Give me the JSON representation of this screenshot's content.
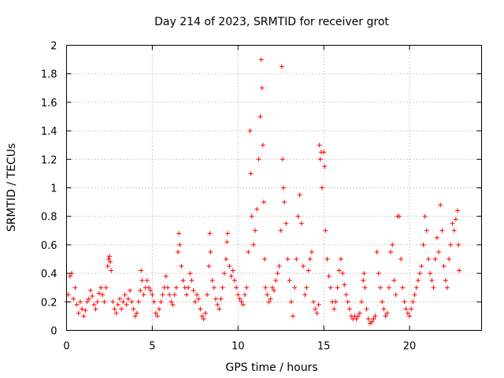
{
  "chart_data": {
    "type": "scatter",
    "title": "Day 214 of 2023, SRMTID for receiver grot",
    "xlabel": "GPS time / hours",
    "ylabel": "SRMTID / TECUs",
    "xlim": [
      0,
      24.2
    ],
    "ylim": [
      0,
      2
    ],
    "xticks": [
      0,
      5,
      10,
      15,
      20
    ],
    "xtick_labels": [
      "0",
      "5",
      "10",
      "15",
      "20"
    ],
    "yticks": [
      0,
      0.2,
      0.4,
      0.6,
      0.8,
      1,
      1.2,
      1.4,
      1.6,
      1.8,
      2
    ],
    "ytick_labels": [
      "0",
      "0.2",
      "0.4",
      "0.6",
      "0.8",
      "1",
      "1.2",
      "1.4",
      "1.6",
      "1.8",
      "2"
    ],
    "grid": true,
    "marker": "plus",
    "color": "#ff0000",
    "series": [
      {
        "name": "SRMTID",
        "points": [
          [
            0.0,
            0.2
          ],
          [
            0.1,
            0.25
          ],
          [
            0.2,
            0.38
          ],
          [
            0.3,
            0.4
          ],
          [
            0.4,
            0.22
          ],
          [
            0.5,
            0.3
          ],
          [
            0.6,
            0.18
          ],
          [
            0.7,
            0.12
          ],
          [
            0.8,
            0.2
          ],
          [
            0.9,
            0.15
          ],
          [
            1.0,
            0.1
          ],
          [
            1.1,
            0.14
          ],
          [
            1.2,
            0.2
          ],
          [
            1.3,
            0.22
          ],
          [
            1.4,
            0.28
          ],
          [
            1.5,
            0.24
          ],
          [
            1.6,
            0.18
          ],
          [
            1.7,
            0.15
          ],
          [
            1.8,
            0.2
          ],
          [
            1.9,
            0.26
          ],
          [
            2.0,
            0.3
          ],
          [
            2.1,
            0.25
          ],
          [
            2.2,
            0.2
          ],
          [
            2.3,
            0.3
          ],
          [
            2.4,
            0.45
          ],
          [
            2.45,
            0.5
          ],
          [
            2.5,
            0.52
          ],
          [
            2.55,
            0.48
          ],
          [
            2.6,
            0.42
          ],
          [
            2.7,
            0.2
          ],
          [
            2.8,
            0.15
          ],
          [
            2.9,
            0.12
          ],
          [
            3.0,
            0.18
          ],
          [
            3.1,
            0.22
          ],
          [
            3.2,
            0.15
          ],
          [
            3.3,
            0.2
          ],
          [
            3.4,
            0.25
          ],
          [
            3.5,
            0.18
          ],
          [
            3.6,
            0.22
          ],
          [
            3.7,
            0.28
          ],
          [
            3.8,
            0.2
          ],
          [
            3.9,
            0.15
          ],
          [
            4.0,
            0.1
          ],
          [
            4.1,
            0.12
          ],
          [
            4.2,
            0.2
          ],
          [
            4.3,
            0.28
          ],
          [
            4.35,
            0.42
          ],
          [
            4.4,
            0.35
          ],
          [
            4.5,
            0.25
          ],
          [
            4.6,
            0.3
          ],
          [
            4.7,
            0.35
          ],
          [
            4.8,
            0.3
          ],
          [
            4.9,
            0.28
          ],
          [
            5.0,
            0.25
          ],
          [
            5.1,
            0.2
          ],
          [
            5.2,
            0.12
          ],
          [
            5.3,
            0.1
          ],
          [
            5.4,
            0.15
          ],
          [
            5.5,
            0.2
          ],
          [
            5.6,
            0.25
          ],
          [
            5.7,
            0.3
          ],
          [
            5.8,
            0.38
          ],
          [
            5.9,
            0.3
          ],
          [
            6.0,
            0.25
          ],
          [
            6.1,
            0.2
          ],
          [
            6.2,
            0.18
          ],
          [
            6.3,
            0.25
          ],
          [
            6.4,
            0.3
          ],
          [
            6.5,
            0.55
          ],
          [
            6.55,
            0.68
          ],
          [
            6.6,
            0.6
          ],
          [
            6.7,
            0.45
          ],
          [
            6.8,
            0.35
          ],
          [
            6.9,
            0.3
          ],
          [
            7.0,
            0.25
          ],
          [
            7.1,
            0.3
          ],
          [
            7.2,
            0.4
          ],
          [
            7.3,
            0.35
          ],
          [
            7.4,
            0.28
          ],
          [
            7.5,
            0.2
          ],
          [
            7.6,
            0.25
          ],
          [
            7.7,
            0.22
          ],
          [
            7.8,
            0.15
          ],
          [
            7.9,
            0.1
          ],
          [
            8.0,
            0.08
          ],
          [
            8.1,
            0.12
          ],
          [
            8.2,
            0.25
          ],
          [
            8.3,
            0.45
          ],
          [
            8.35,
            0.68
          ],
          [
            8.4,
            0.55
          ],
          [
            8.5,
            0.35
          ],
          [
            8.6,
            0.3
          ],
          [
            8.7,
            0.22
          ],
          [
            8.8,
            0.18
          ],
          [
            8.9,
            0.15
          ],
          [
            9.0,
            0.22
          ],
          [
            9.1,
            0.3
          ],
          [
            9.2,
            0.4
          ],
          [
            9.3,
            0.5
          ],
          [
            9.35,
            0.62
          ],
          [
            9.4,
            0.68
          ],
          [
            9.5,
            0.45
          ],
          [
            9.6,
            0.38
          ],
          [
            9.7,
            0.42
          ],
          [
            9.8,
            0.35
          ],
          [
            9.9,
            0.3
          ],
          [
            10.0,
            0.25
          ],
          [
            10.1,
            0.22
          ],
          [
            10.2,
            0.2
          ],
          [
            10.3,
            0.18
          ],
          [
            10.4,
            0.25
          ],
          [
            10.5,
            0.3
          ],
          [
            10.6,
            0.55
          ],
          [
            10.7,
            1.4
          ],
          [
            10.75,
            1.1
          ],
          [
            10.8,
            0.8
          ],
          [
            10.9,
            0.6
          ],
          [
            11.0,
            0.7
          ],
          [
            11.1,
            0.85
          ],
          [
            11.2,
            1.2
          ],
          [
            11.3,
            1.5
          ],
          [
            11.35,
            1.9
          ],
          [
            11.4,
            1.7
          ],
          [
            11.45,
            1.3
          ],
          [
            11.5,
            0.9
          ],
          [
            11.55,
            0.5
          ],
          [
            11.6,
            0.3
          ],
          [
            11.7,
            0.25
          ],
          [
            11.8,
            0.2
          ],
          [
            11.9,
            0.22
          ],
          [
            12.0,
            0.3
          ],
          [
            12.1,
            0.28
          ],
          [
            12.2,
            0.35
          ],
          [
            12.3,
            0.4
          ],
          [
            12.4,
            0.45
          ],
          [
            12.5,
            0.7
          ],
          [
            12.55,
            1.85
          ],
          [
            12.6,
            1.2
          ],
          [
            12.65,
            1.0
          ],
          [
            12.7,
            0.9
          ],
          [
            12.8,
            0.75
          ],
          [
            12.9,
            0.5
          ],
          [
            13.0,
            0.35
          ],
          [
            13.1,
            0.2
          ],
          [
            13.2,
            0.1
          ],
          [
            13.3,
            0.3
          ],
          [
            13.4,
            0.5
          ],
          [
            13.5,
            0.8
          ],
          [
            13.6,
            0.95
          ],
          [
            13.7,
            0.75
          ],
          [
            13.8,
            0.45
          ],
          [
            13.9,
            0.25
          ],
          [
            14.0,
            0.3
          ],
          [
            14.1,
            0.42
          ],
          [
            14.2,
            0.5
          ],
          [
            14.3,
            0.55
          ],
          [
            14.4,
            0.2
          ],
          [
            14.5,
            0.15
          ],
          [
            14.6,
            0.12
          ],
          [
            14.7,
            0.18
          ],
          [
            14.75,
            1.3
          ],
          [
            14.8,
            1.2
          ],
          [
            14.85,
            1.25
          ],
          [
            14.9,
            1.0
          ],
          [
            15.0,
            1.25
          ],
          [
            15.05,
            1.15
          ],
          [
            15.1,
            0.7
          ],
          [
            15.2,
            0.5
          ],
          [
            15.3,
            0.38
          ],
          [
            15.4,
            0.3
          ],
          [
            15.5,
            0.2
          ],
          [
            15.6,
            0.15
          ],
          [
            15.7,
            0.2
          ],
          [
            15.8,
            0.3
          ],
          [
            15.9,
            0.42
          ],
          [
            16.0,
            0.5
          ],
          [
            16.1,
            0.4
          ],
          [
            16.2,
            0.32
          ],
          [
            16.3,
            0.25
          ],
          [
            16.4,
            0.2
          ],
          [
            16.5,
            0.15
          ],
          [
            16.6,
            0.1
          ],
          [
            16.7,
            0.08
          ],
          [
            16.8,
            0.1
          ],
          [
            16.9,
            0.08
          ],
          [
            17.0,
            0.1
          ],
          [
            17.1,
            0.12
          ],
          [
            17.2,
            0.2
          ],
          [
            17.3,
            0.35
          ],
          [
            17.35,
            0.4
          ],
          [
            17.4,
            0.3
          ],
          [
            17.5,
            0.15
          ],
          [
            17.6,
            0.08
          ],
          [
            17.7,
            0.05
          ],
          [
            17.8,
            0.06
          ],
          [
            17.9,
            0.08
          ],
          [
            18.0,
            0.1
          ],
          [
            18.1,
            0.55
          ],
          [
            18.2,
            0.4
          ],
          [
            18.3,
            0.3
          ],
          [
            18.4,
            0.2
          ],
          [
            18.5,
            0.15
          ],
          [
            18.6,
            0.1
          ],
          [
            18.7,
            0.12
          ],
          [
            18.8,
            0.3
          ],
          [
            18.9,
            0.55
          ],
          [
            19.0,
            0.6
          ],
          [
            19.1,
            0.35
          ],
          [
            19.2,
            0.25
          ],
          [
            19.3,
            0.8
          ],
          [
            19.4,
            0.8
          ],
          [
            19.5,
            0.5
          ],
          [
            19.6,
            0.3
          ],
          [
            19.7,
            0.2
          ],
          [
            19.8,
            0.15
          ],
          [
            19.9,
            0.12
          ],
          [
            20.0,
            0.1
          ],
          [
            20.1,
            0.15
          ],
          [
            20.2,
            0.2
          ],
          [
            20.3,
            0.25
          ],
          [
            20.4,
            0.3
          ],
          [
            20.5,
            0.35
          ],
          [
            20.6,
            0.4
          ],
          [
            20.7,
            0.45
          ],
          [
            20.8,
            0.6
          ],
          [
            20.9,
            0.8
          ],
          [
            21.0,
            0.7
          ],
          [
            21.1,
            0.5
          ],
          [
            21.2,
            0.4
          ],
          [
            21.3,
            0.35
          ],
          [
            21.4,
            0.3
          ],
          [
            21.5,
            0.5
          ],
          [
            21.6,
            0.65
          ],
          [
            21.7,
            0.55
          ],
          [
            21.8,
            0.88
          ],
          [
            21.9,
            0.7
          ],
          [
            22.0,
            0.45
          ],
          [
            22.1,
            0.35
          ],
          [
            22.2,
            0.3
          ],
          [
            22.3,
            0.5
          ],
          [
            22.4,
            0.6
          ],
          [
            22.5,
            0.75
          ],
          [
            22.6,
            0.7
          ],
          [
            22.7,
            0.78
          ],
          [
            22.8,
            0.84
          ],
          [
            22.85,
            0.6
          ],
          [
            22.9,
            0.42
          ]
        ]
      }
    ]
  }
}
